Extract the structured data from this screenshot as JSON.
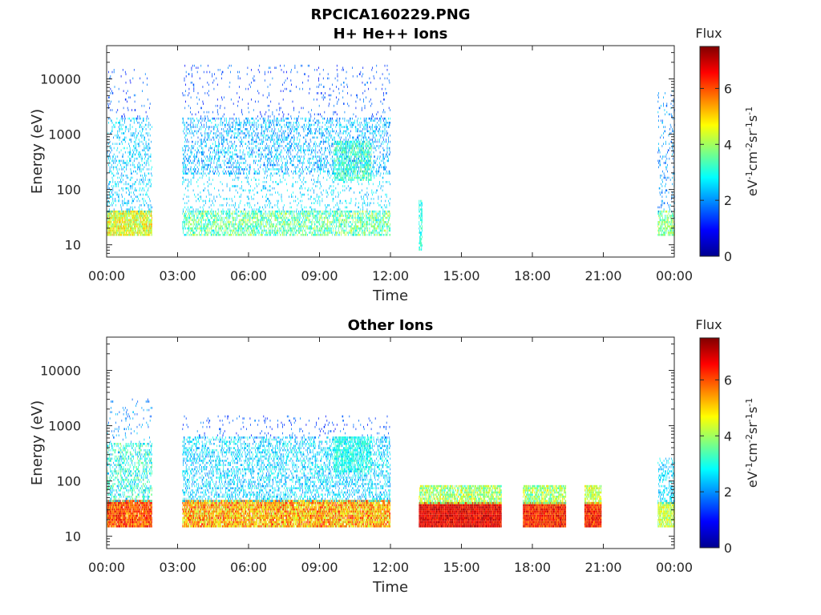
{
  "figure_title": "RPCICA160229.PNG",
  "colors": {
    "colormap": [
      "#00008f",
      "#0000ff",
      "#0080ff",
      "#00ffff",
      "#80ff80",
      "#ffff00",
      "#ff8000",
      "#ff0000",
      "#800000"
    ],
    "axes_line": "#262626",
    "background": "#ffffff"
  },
  "chart_data": [
    {
      "type": "heatmap",
      "title": "H+ He++ Ions",
      "xlabel": "Time",
      "ylabel": "Energy (eV)",
      "x_tick_labels": [
        "00:00",
        "03:00",
        "06:00",
        "09:00",
        "12:00",
        "15:00",
        "18:00",
        "21:00",
        "00:00"
      ],
      "x_tick_hours": [
        0,
        3,
        6,
        9,
        12,
        15,
        18,
        21,
        24
      ],
      "xlim_hours": [
        0,
        24
      ],
      "y_scale": "log",
      "y_tick_labels": [
        "10",
        "100",
        "1000",
        "10000"
      ],
      "y_tick_values": [
        10,
        100,
        1000,
        10000
      ],
      "ylim": [
        6,
        40000
      ],
      "colorbar": {
        "title": "Flux",
        "label": "eV-1cm-2sr-1s-1",
        "ticks": [
          "0",
          "2",
          "4",
          "6"
        ],
        "tick_values": [
          0,
          2,
          4,
          6
        ],
        "range": [
          0,
          7.5
        ]
      },
      "regions": [
        {
          "t": [
            0.0,
            1.9
          ],
          "e": [
            15,
            40
          ],
          "flux": [
            3.5,
            5.5
          ],
          "density": 0.85
        },
        {
          "t": [
            0.0,
            1.9
          ],
          "e": [
            40,
            2000
          ],
          "flux": [
            1.8,
            3.0
          ],
          "density": 0.18
        },
        {
          "t": [
            0.0,
            1.9
          ],
          "e": [
            2000,
            15000
          ],
          "flux": [
            1.0,
            2.0
          ],
          "density": 0.04
        },
        {
          "t": [
            3.2,
            12.0
          ],
          "e": [
            15,
            40
          ],
          "flux": [
            2.5,
            4.5
          ],
          "density": 0.5
        },
        {
          "t": [
            3.2,
            12.0
          ],
          "e": [
            40,
            200
          ],
          "flux": [
            2.0,
            3.0
          ],
          "density": 0.1
        },
        {
          "t": [
            3.2,
            12.0
          ],
          "e": [
            200,
            2000
          ],
          "flux": [
            1.5,
            3.0
          ],
          "density": 0.25
        },
        {
          "t": [
            3.2,
            12.0
          ],
          "e": [
            2000,
            18000
          ],
          "flux": [
            1.0,
            2.0
          ],
          "density": 0.04
        },
        {
          "t": [
            9.6,
            11.2
          ],
          "e": [
            150,
            700
          ],
          "flux": [
            2.5,
            4.0
          ],
          "density": 0.5
        },
        {
          "t": [
            13.2,
            13.35
          ],
          "e": [
            8,
            60
          ],
          "flux": [
            2.5,
            3.5
          ],
          "density": 0.6
        },
        {
          "t": [
            23.3,
            24.0
          ],
          "e": [
            15,
            40
          ],
          "flux": [
            3.0,
            4.5
          ],
          "density": 0.6
        },
        {
          "t": [
            23.3,
            24.0
          ],
          "e": [
            40,
            6000
          ],
          "flux": [
            1.5,
            2.5
          ],
          "density": 0.12
        }
      ]
    },
    {
      "type": "heatmap",
      "title": "Other Ions",
      "xlabel": "Time",
      "ylabel": "Energy (eV)",
      "x_tick_labels": [
        "00:00",
        "03:00",
        "06:00",
        "09:00",
        "12:00",
        "15:00",
        "18:00",
        "21:00",
        "00:00"
      ],
      "x_tick_hours": [
        0,
        3,
        6,
        9,
        12,
        15,
        18,
        21,
        24
      ],
      "xlim_hours": [
        0,
        24
      ],
      "y_scale": "log",
      "y_tick_labels": [
        "10",
        "100",
        "1000",
        "10000"
      ],
      "y_tick_values": [
        10,
        100,
        1000,
        10000
      ],
      "ylim": [
        6,
        40000
      ],
      "colorbar": {
        "title": "Flux",
        "label": "eV-1cm-2sr-1s-1",
        "ticks": [
          "0",
          "2",
          "4",
          "6"
        ],
        "tick_values": [
          0,
          2,
          4,
          6
        ],
        "range": [
          0,
          7.5
        ]
      },
      "regions": [
        {
          "t": [
            0.0,
            1.9
          ],
          "e": [
            15,
            45
          ],
          "flux": [
            5.0,
            7.0
          ],
          "density": 0.95
        },
        {
          "t": [
            0.0,
            1.9
          ],
          "e": [
            45,
            450
          ],
          "flux": [
            2.0,
            4.0
          ],
          "density": 0.35
        },
        {
          "t": [
            0.0,
            1.9
          ],
          "e": [
            450,
            3000
          ],
          "flux": [
            1.5,
            2.5
          ],
          "density": 0.05
        },
        {
          "t": [
            3.2,
            12.0
          ],
          "e": [
            15,
            45
          ],
          "flux": [
            4.0,
            6.5
          ],
          "density": 0.9
        },
        {
          "t": [
            3.2,
            12.0
          ],
          "e": [
            45,
            600
          ],
          "flux": [
            1.8,
            3.2
          ],
          "density": 0.3
        },
        {
          "t": [
            3.2,
            12.0
          ],
          "e": [
            600,
            1500
          ],
          "flux": [
            1.0,
            2.0
          ],
          "density": 0.05
        },
        {
          "t": [
            9.6,
            11.2
          ],
          "e": [
            150,
            600
          ],
          "flux": [
            2.5,
            3.5
          ],
          "density": 0.55
        },
        {
          "t": [
            13.2,
            16.7
          ],
          "e": [
            15,
            40
          ],
          "flux": [
            6.0,
            7.4
          ],
          "density": 1.0
        },
        {
          "t": [
            13.2,
            16.7
          ],
          "e": [
            40,
            80
          ],
          "flux": [
            3.0,
            5.0
          ],
          "density": 0.7
        },
        {
          "t": [
            17.6,
            19.4
          ],
          "e": [
            15,
            40
          ],
          "flux": [
            5.5,
            7.2
          ],
          "density": 1.0
        },
        {
          "t": [
            17.6,
            19.4
          ],
          "e": [
            40,
            80
          ],
          "flux": [
            3.0,
            5.0
          ],
          "density": 0.7
        },
        {
          "t": [
            20.2,
            20.9
          ],
          "e": [
            15,
            40
          ],
          "flux": [
            5.5,
            7.2
          ],
          "density": 1.0
        },
        {
          "t": [
            20.2,
            20.9
          ],
          "e": [
            40,
            80
          ],
          "flux": [
            3.5,
            5.0
          ],
          "density": 0.7
        },
        {
          "t": [
            23.3,
            24.0
          ],
          "e": [
            15,
            40
          ],
          "flux": [
            3.5,
            5.0
          ],
          "density": 0.8
        },
        {
          "t": [
            23.3,
            24.0
          ],
          "e": [
            40,
            250
          ],
          "flux": [
            2.0,
            3.0
          ],
          "density": 0.3
        }
      ]
    }
  ]
}
